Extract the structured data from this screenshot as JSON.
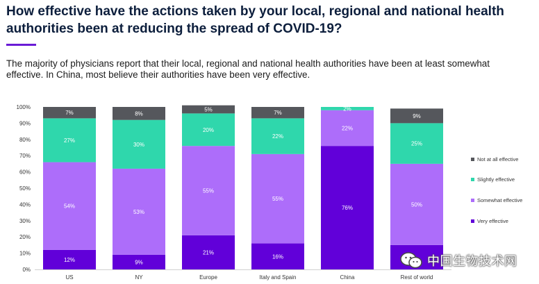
{
  "header": {
    "title": "How effective have the actions taken by your local, regional and national health authorities been at reducing the spread of COVID-19?",
    "subtitle": "The majority of physicians report that their local, regional and national health authorities have been at least somewhat effective. In China, most believe their authorities have been very effective."
  },
  "watermark": {
    "text": "中国生物技术网"
  },
  "chart_data": {
    "type": "bar",
    "stacked": true,
    "title": "",
    "xlabel": "",
    "ylabel": "",
    "ylim": [
      0,
      100
    ],
    "yticks": [
      "0%",
      "10%",
      "20%",
      "30%",
      "40%",
      "50%",
      "60%",
      "70%",
      "80%",
      "90%",
      "100%"
    ],
    "grid": false,
    "legend_position": "right",
    "categories": [
      "US",
      "NY",
      "Europe",
      "Italy and Spain",
      "China",
      "Rest of world"
    ],
    "series": [
      {
        "name": "Very effective",
        "color": "#6100d9",
        "values": [
          12,
          9,
          21,
          16,
          76,
          15
        ],
        "labels": [
          "12%",
          "9%",
          "21%",
          "16%",
          "76%",
          ""
        ]
      },
      {
        "name": "Somewhat effective",
        "color": "#ad6dfa",
        "values": [
          54,
          53,
          55,
          55,
          22,
          50
        ],
        "labels": [
          "54%",
          "53%",
          "55%",
          "55%",
          "22%",
          "50%"
        ]
      },
      {
        "name": "Slightly effective",
        "color": "#2fd7ac",
        "values": [
          27,
          30,
          20,
          22,
          2,
          25
        ],
        "labels": [
          "27%",
          "30%",
          "20%",
          "22%",
          "2%",
          "25%"
        ]
      },
      {
        "name": "Not at all effective",
        "color": "#55575c",
        "values": [
          7,
          8,
          5,
          7,
          0,
          9
        ],
        "labels": [
          "7%",
          "8%",
          "5%",
          "7%",
          "",
          "9%"
        ]
      }
    ]
  }
}
